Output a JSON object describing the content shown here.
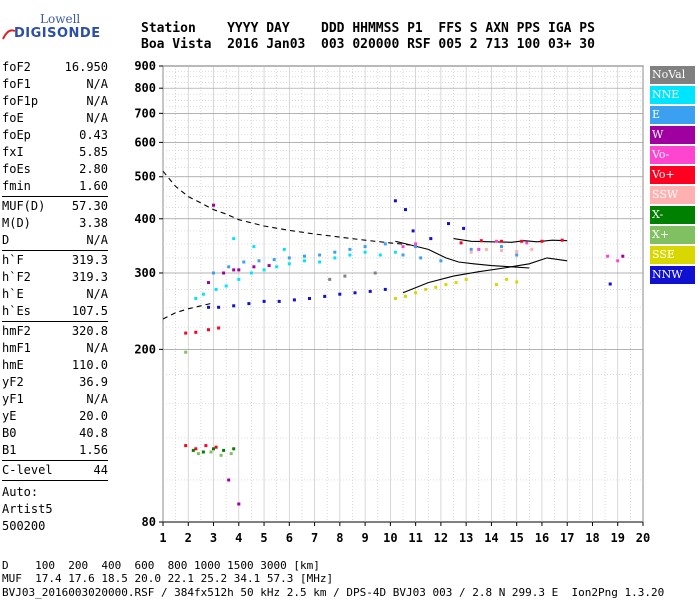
{
  "logo": {
    "line1": "Lowell",
    "line2": "DIGISONDE"
  },
  "header": {
    "row1": "Station    YYYY DAY    DDD HHMMSS P1  FFS S AXN PPS IGA PS",
    "row2": "Boa Vista  2016 Jan03  003 020000 RSF 005 2 713 100 03+ 30"
  },
  "params": [
    {
      "label": "foF2",
      "value": "16.950"
    },
    {
      "label": "foF1",
      "value": "N/A"
    },
    {
      "label": "foF1p",
      "value": "N/A"
    },
    {
      "label": "foE",
      "value": "N/A"
    },
    {
      "label": "foEp",
      "value": "0.43"
    },
    {
      "label": "fxI",
      "value": "5.85"
    },
    {
      "label": "foEs",
      "value": "2.80"
    },
    {
      "label": "fmin",
      "value": "1.60"
    },
    {
      "divider": true
    },
    {
      "label": "MUF(D)",
      "value": "57.30"
    },
    {
      "label": "M(D)",
      "value": "3.38"
    },
    {
      "label": "D",
      "value": "N/A"
    },
    {
      "divider": true
    },
    {
      "label": "h`F",
      "value": "319.3"
    },
    {
      "label": "h`F2",
      "value": "319.3"
    },
    {
      "label": "h`E",
      "value": "N/A"
    },
    {
      "label": "h`Es",
      "value": "107.5"
    },
    {
      "divider": true
    },
    {
      "label": "hmF2",
      "value": "320.8"
    },
    {
      "label": "hmF1",
      "value": "N/A"
    },
    {
      "label": "hmE",
      "value": "110.0"
    },
    {
      "label": "yF2",
      "value": "36.9"
    },
    {
      "label": "yF1",
      "value": "N/A"
    },
    {
      "label": "yE",
      "value": "20.0"
    },
    {
      "label": "B0",
      "value": "40.8"
    },
    {
      "label": "B1",
      "value": "1.56"
    },
    {
      "divider": true
    },
    {
      "label": "C-level",
      "value": "44"
    },
    {
      "divider": true
    }
  ],
  "auto": {
    "line1": "Auto:",
    "line2": "Artist5",
    "line3": "500200"
  },
  "legend": [
    {
      "label": "NoVal",
      "color": "#808080"
    },
    {
      "label": "NNE",
      "color": "#00e5ff"
    },
    {
      "label": "E",
      "color": "#3ca0f0"
    },
    {
      "label": "W",
      "color": "#a000a0"
    },
    {
      "label": "Vo-",
      "color": "#ff44d0"
    },
    {
      "label": "Vo+",
      "color": "#ff0020"
    },
    {
      "label": "SSW",
      "color": "#ffb0b0"
    },
    {
      "label": "X-",
      "color": "#008000"
    },
    {
      "label": "X+",
      "color": "#80c060"
    },
    {
      "label": "SSE",
      "color": "#d8d800"
    },
    {
      "label": "NNW",
      "color": "#1010d0"
    }
  ],
  "footer": {
    "line1": "D    100  200  400  600  800 1000 1500 3000 [km]",
    "line2": "MUF  17.4 17.6 18.5 20.0 22.1 25.2 34.1 57.3 [MHz]",
    "line3": "BVJ03_2016003020000.RSF / 384fx512h 50 kHz 2.5 km / DPS-4D BVJ03 003 / 2.8 N 299.3 E  Ion2Png 1.3.20"
  },
  "chart_data": {
    "type": "scatter",
    "title": "",
    "xlabel": "",
    "ylabel": "",
    "xlim": [
      1,
      20
    ],
    "ylim": [
      80,
      900
    ],
    "x_ticks": [
      1,
      2,
      3,
      4,
      5,
      6,
      7,
      8,
      9,
      10,
      11,
      12,
      13,
      14,
      15,
      16,
      17,
      18,
      19,
      20
    ],
    "y_ticks": [
      80,
      200,
      300,
      400,
      500,
      600,
      700,
      800,
      900
    ],
    "grid": true,
    "series": [
      {
        "name": "NNE",
        "points": [
          [
            2.3,
            262
          ],
          [
            2.6,
            268
          ],
          [
            3.1,
            275
          ],
          [
            3.5,
            280
          ],
          [
            4.0,
            290
          ],
          [
            4.5,
            300
          ],
          [
            5.0,
            305
          ],
          [
            5.5,
            310
          ],
          [
            6.0,
            315
          ],
          [
            6.6,
            320
          ],
          [
            7.2,
            318
          ],
          [
            7.8,
            325
          ],
          [
            8.4,
            330
          ],
          [
            9.0,
            335
          ],
          [
            9.6,
            330
          ],
          [
            10.2,
            335
          ],
          [
            3.8,
            360
          ],
          [
            4.6,
            345
          ],
          [
            5.8,
            340
          ]
        ]
      },
      {
        "name": "E",
        "points": [
          [
            3.0,
            300
          ],
          [
            3.6,
            310
          ],
          [
            4.2,
            318
          ],
          [
            4.8,
            320
          ],
          [
            5.4,
            322
          ],
          [
            6.0,
            325
          ],
          [
            6.6,
            328
          ],
          [
            7.2,
            330
          ],
          [
            7.8,
            335
          ],
          [
            8.4,
            340
          ],
          [
            9.0,
            345
          ],
          [
            9.8,
            350
          ],
          [
            10.5,
            330
          ],
          [
            11.2,
            325
          ],
          [
            12.0,
            320
          ],
          [
            13.2,
            340
          ],
          [
            14.4,
            345
          ],
          [
            15.0,
            330
          ],
          [
            11.0,
            345
          ]
        ]
      },
      {
        "name": "W",
        "points": [
          [
            2.8,
            285
          ],
          [
            3.4,
            300
          ],
          [
            4.0,
            305
          ],
          [
            4.6,
            310
          ],
          [
            5.2,
            312
          ],
          [
            3.0,
            430
          ],
          [
            3.6,
            100
          ],
          [
            4.0,
            88
          ],
          [
            3.8,
            305
          ],
          [
            19.2,
            328
          ]
        ]
      },
      {
        "name": "Vo-",
        "points": [
          [
            10.5,
            345
          ],
          [
            11.0,
            350
          ],
          [
            13.5,
            340
          ],
          [
            14.2,
            355
          ],
          [
            15.4,
            352
          ],
          [
            18.6,
            328
          ],
          [
            19.0,
            320
          ]
        ]
      },
      {
        "name": "Vo+",
        "points": [
          [
            1.9,
            218
          ],
          [
            2.3,
            219
          ],
          [
            2.8,
            222
          ],
          [
            3.2,
            224
          ],
          [
            1.9,
            120
          ],
          [
            2.3,
            118
          ],
          [
            2.7,
            120
          ],
          [
            3.1,
            119
          ],
          [
            12.8,
            352
          ],
          [
            13.6,
            356
          ],
          [
            14.4,
            355
          ],
          [
            15.2,
            355
          ],
          [
            16.0,
            355
          ],
          [
            16.8,
            357
          ]
        ]
      },
      {
        "name": "SSW",
        "points": [
          [
            13.2,
            335
          ],
          [
            13.8,
            340
          ],
          [
            14.4,
            338
          ],
          [
            15.0,
            336
          ],
          [
            15.6,
            340
          ]
        ]
      },
      {
        "name": "X-",
        "points": [
          [
            2.2,
            117
          ],
          [
            2.6,
            116
          ],
          [
            3.0,
            118
          ],
          [
            3.4,
            117
          ],
          [
            3.8,
            118
          ]
        ]
      },
      {
        "name": "X+",
        "points": [
          [
            1.9,
            197
          ],
          [
            2.4,
            115
          ],
          [
            2.9,
            116
          ],
          [
            3.3,
            114
          ],
          [
            3.7,
            115
          ]
        ]
      },
      {
        "name": "SSE",
        "points": [
          [
            10.2,
            262
          ],
          [
            10.6,
            265
          ],
          [
            11.0,
            270
          ],
          [
            11.4,
            275
          ],
          [
            11.8,
            278
          ],
          [
            12.2,
            282
          ],
          [
            12.6,
            285
          ],
          [
            13.0,
            290
          ],
          [
            14.2,
            282
          ],
          [
            14.6,
            290
          ],
          [
            15.0,
            286
          ]
        ]
      },
      {
        "name": "NNW",
        "points": [
          [
            2.8,
            250
          ],
          [
            3.2,
            250
          ],
          [
            3.8,
            252
          ],
          [
            4.4,
            255
          ],
          [
            5.0,
            258
          ],
          [
            5.6,
            258
          ],
          [
            6.2,
            260
          ],
          [
            6.8,
            262
          ],
          [
            7.4,
            265
          ],
          [
            8.0,
            268
          ],
          [
            8.6,
            270
          ],
          [
            9.2,
            272
          ],
          [
            9.8,
            275
          ],
          [
            10.2,
            440
          ],
          [
            10.6,
            420
          ],
          [
            12.3,
            390
          ],
          [
            12.9,
            380
          ],
          [
            11.6,
            360
          ],
          [
            10.9,
            375
          ],
          [
            18.7,
            283
          ]
        ]
      },
      {
        "name": "NoVal",
        "points": [
          [
            7.6,
            290
          ],
          [
            8.2,
            295
          ],
          [
            9.4,
            300
          ]
        ]
      }
    ],
    "lines": [
      {
        "style": "dashed",
        "points": [
          [
            1.0,
            515
          ],
          [
            1.5,
            475
          ],
          [
            2.0,
            450
          ],
          [
            2.5,
            435
          ],
          [
            3.0,
            420
          ],
          [
            3.5,
            410
          ],
          [
            4.0,
            398
          ],
          [
            5.0,
            385
          ],
          [
            6.0,
            376
          ],
          [
            7.0,
            369
          ],
          [
            8.0,
            363
          ],
          [
            9.0,
            357
          ],
          [
            10.0,
            352
          ],
          [
            10.8,
            348
          ]
        ]
      },
      {
        "style": "dashed",
        "points": [
          [
            1.0,
            235
          ],
          [
            1.5,
            243
          ],
          [
            2.0,
            248
          ],
          [
            2.5,
            252
          ],
          [
            3.0,
            256
          ]
        ]
      },
      {
        "style": "solid",
        "points": [
          [
            10.5,
            270
          ],
          [
            11.5,
            285
          ],
          [
            12.5,
            295
          ],
          [
            13.5,
            302
          ],
          [
            14.5,
            308
          ],
          [
            15.5,
            315
          ],
          [
            16.2,
            325
          ],
          [
            17.0,
            320
          ]
        ]
      },
      {
        "style": "solid",
        "points": [
          [
            10.2,
            355
          ],
          [
            10.8,
            348
          ],
          [
            11.5,
            340
          ],
          [
            12.2,
            325
          ],
          [
            12.7,
            318
          ],
          [
            13.3,
            315
          ],
          [
            14.0,
            312
          ],
          [
            14.8,
            310
          ],
          [
            15.5,
            308
          ]
        ]
      },
      {
        "style": "solid",
        "points": [
          [
            12.5,
            360
          ],
          [
            13.2,
            355
          ],
          [
            14.0,
            354
          ],
          [
            14.8,
            353
          ],
          [
            15.3,
            356
          ],
          [
            15.8,
            354
          ],
          [
            16.4,
            357
          ],
          [
            17.0,
            356
          ]
        ]
      }
    ],
    "legend_placement": "right"
  }
}
